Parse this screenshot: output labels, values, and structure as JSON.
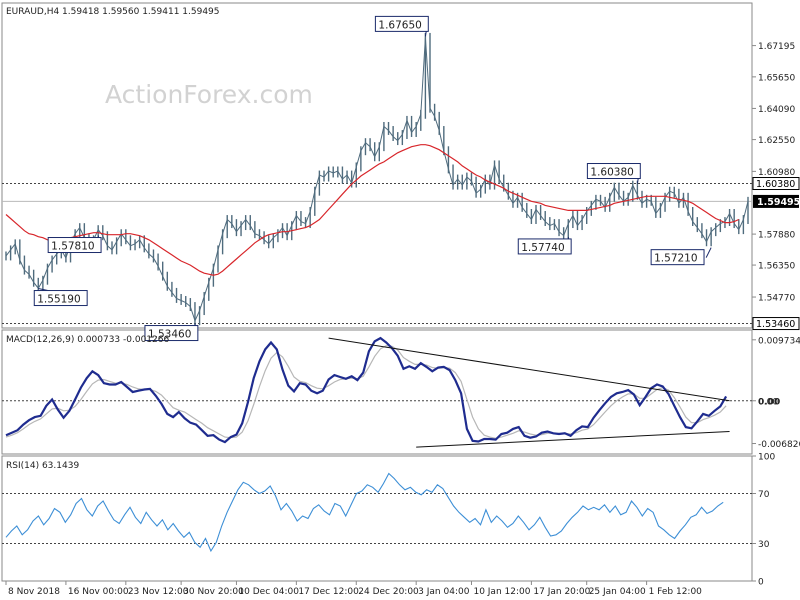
{
  "watermark": "ActionForex.com",
  "colors": {
    "price": "#4f6b7d",
    "ma": "#d8262b",
    "macd": "#1f2c8f",
    "signal": "#b7b7b7",
    "rsi": "#3d8fd6",
    "dotted": "#444444",
    "trend": "#111111",
    "text": "#222222",
    "axis": "#8a8a8a"
  },
  "chart_data": [
    {
      "type": "line",
      "title": "EURAUD,H4  1.59418 1.59560 1.59411 1.59495",
      "ylim": [
        1.5324,
        1.693
      ],
      "y_ticks": [
        "1.67195",
        "1.65650",
        "1.64090",
        "1.62550",
        "1.60980",
        "1.57880",
        "1.56350",
        "1.54770"
      ],
      "y_tick_values": [
        1.67195,
        1.6565,
        1.6409,
        1.6255,
        1.6098,
        1.5788,
        1.5635,
        1.5477
      ],
      "current_price": 1.59495,
      "current_price_label": "1.59495",
      "reference_lines": [
        {
          "value": 1.6038,
          "label": "1.60380"
        },
        {
          "value": 1.5346,
          "label": "1.53460"
        }
      ],
      "callouts": [
        {
          "label": "1.55190",
          "value": 1.5519,
          "bar": 7
        },
        {
          "label": "1.57810",
          "value": 1.5781,
          "bar": 20
        },
        {
          "label": "1.53460",
          "value": 1.5346,
          "bar": 41
        },
        {
          "label": "1.67650",
          "value": 1.6765,
          "bar": 91
        },
        {
          "label": "1.57740",
          "value": 1.5774,
          "bar": 122
        },
        {
          "label": "1.60380",
          "value": 1.6038,
          "bar": 137
        },
        {
          "label": "1.57210",
          "value": 1.5721,
          "bar": 153
        }
      ],
      "series": [
        {
          "name": "",
          "values": [
            1.568,
            1.571,
            1.574,
            1.566,
            1.561,
            1.559,
            1.555,
            1.552,
            1.556,
            1.562,
            1.566,
            1.569,
            1.571,
            1.567,
            1.574,
            1.579,
            1.582,
            1.577,
            1.574,
            1.576,
            1.581,
            1.578,
            1.573,
            1.571,
            1.575,
            1.579,
            1.576,
            1.573,
            1.574,
            1.576,
            1.572,
            1.569,
            1.567,
            1.563,
            1.558,
            1.553,
            1.55,
            1.547,
            1.546,
            1.545,
            1.543,
            1.536,
            1.541,
            1.548,
            1.555,
            1.562,
            1.571,
            1.579,
            1.586,
            1.584,
            1.58,
            1.583,
            1.586,
            1.583,
            1.579,
            1.578,
            1.576,
            1.574,
            1.577,
            1.579,
            1.582,
            1.578,
            1.583,
            1.588,
            1.585,
            1.584,
            1.59,
            1.6,
            1.608,
            1.607,
            1.61,
            1.609,
            1.61,
            1.606,
            1.608,
            1.604,
            1.612,
            1.62,
            1.624,
            1.622,
            1.617,
            1.622,
            1.632,
            1.63,
            1.627,
            1.625,
            1.628,
            1.635,
            1.629,
            1.632,
            1.638,
            1.676,
            1.641,
            1.637,
            1.63,
            1.62,
            1.611,
            1.603,
            1.606,
            1.603,
            1.607,
            1.605,
            1.599,
            1.601,
            1.606,
            1.603,
            1.613,
            1.606,
            1.602,
            1.598,
            1.594,
            1.597,
            1.592,
            1.589,
            1.586,
            1.591,
            1.588,
            1.585,
            1.583,
            1.584,
            1.58,
            1.578,
            1.584,
            1.588,
            1.583,
            1.586,
            1.59,
            1.593,
            1.596,
            1.595,
            1.592,
            1.597,
            1.602,
            1.598,
            1.595,
            1.597,
            1.603,
            1.598,
            1.594,
            1.596,
            1.595,
            1.589,
            1.592,
            1.597,
            1.6,
            1.599,
            1.594,
            1.597,
            1.59,
            1.585,
            1.582,
            1.579,
            1.575,
            1.58,
            1.582,
            1.584,
            1.585,
            1.589,
            1.584,
            1.581,
            1.586,
            1.595
          ]
        },
        {
          "name": "",
          "values": [
            1.5885,
            1.5865,
            1.5845,
            1.5825,
            1.5805,
            1.579,
            1.5785,
            1.5775,
            1.577,
            1.576,
            1.5755,
            1.5755,
            1.576,
            1.5765,
            1.577,
            1.5775,
            1.578,
            1.5785,
            1.579,
            1.5795,
            1.5795,
            1.579,
            1.5785,
            1.5785,
            1.5785,
            1.5785,
            1.579,
            1.579,
            1.5785,
            1.578,
            1.577,
            1.576,
            1.5745,
            1.573,
            1.5715,
            1.57,
            1.5685,
            1.567,
            1.5655,
            1.5645,
            1.5635,
            1.562,
            1.5605,
            1.5595,
            1.559,
            1.5585,
            1.559,
            1.5605,
            1.5625,
            1.5645,
            1.5665,
            1.5685,
            1.5705,
            1.5725,
            1.5745,
            1.576,
            1.5775,
            1.5785,
            1.579,
            1.5795,
            1.58,
            1.58,
            1.5805,
            1.581,
            1.5815,
            1.582,
            1.583,
            1.5845,
            1.586,
            1.5885,
            1.591,
            1.5935,
            1.596,
            1.5985,
            1.601,
            1.6035,
            1.6055,
            1.6075,
            1.609,
            1.6105,
            1.612,
            1.6135,
            1.6145,
            1.616,
            1.6175,
            1.619,
            1.62,
            1.621,
            1.622,
            1.6225,
            1.623,
            1.623,
            1.6225,
            1.6215,
            1.6205,
            1.619,
            1.6175,
            1.616,
            1.6145,
            1.6125,
            1.611,
            1.6095,
            1.608,
            1.607,
            1.6055,
            1.6045,
            1.6035,
            1.6025,
            1.6015,
            1.6,
            1.599,
            1.598,
            1.597,
            1.596,
            1.595,
            1.5945,
            1.594,
            1.593,
            1.5925,
            1.592,
            1.5915,
            1.591,
            1.5905,
            1.5905,
            1.5905,
            1.5905,
            1.5905,
            1.591,
            1.5915,
            1.592,
            1.5925,
            1.593,
            1.594,
            1.5945,
            1.595,
            1.5955,
            1.596,
            1.5965,
            1.597,
            1.5975,
            1.5975,
            1.5975,
            1.5975,
            1.5975,
            1.597,
            1.5965,
            1.596,
            1.5955,
            1.595,
            1.594,
            1.5925,
            1.591,
            1.5895,
            1.588,
            1.5865,
            1.5855,
            1.5845,
            1.5845,
            1.585,
            1.586
          ]
        }
      ],
      "x_tick_labels": [
        "8 Nov 2018",
        "16 Nov 00:00",
        "23 Nov 12:00",
        "30 Nov 20:00",
        "10 Dec 04:00",
        "17 Dec 12:00",
        "24 Dec 20:00",
        "3 Jan 04:00",
        "10 Jan 12:00",
        "17 Jan 20:00",
        "25 Jan 04:00",
        "1 Feb 12:00"
      ],
      "x_tick_bars": [
        0,
        13,
        26,
        38,
        50,
        63,
        76,
        89,
        101,
        114,
        126,
        139
      ]
    },
    {
      "type": "line",
      "title": "MACD(12,26,9) 0.000733 -0.001266",
      "ylim": [
        -0.0085,
        0.0113
      ],
      "y_ticks": [
        "0.009734",
        "0.00",
        "-0.006826"
      ],
      "y_tick_values": [
        0.009734,
        0.0,
        -0.006826
      ],
      "current_label": "0.00",
      "trendlines": [
        [
          {
            "bar": 70,
            "value": 0.01
          },
          {
            "bar": 157,
            "value": 0.0
          }
        ],
        [
          {
            "bar": 89,
            "value": -0.0074
          },
          {
            "bar": 157,
            "value": -0.0049
          }
        ]
      ],
      "series": [
        {
          "name": "",
          "values": [
            -0.0055,
            -0.0051,
            -0.0047,
            -0.0038,
            -0.0031,
            -0.0026,
            -0.0024,
            -0.0008,
            0.0002,
            -0.0014,
            -0.0027,
            -0.0016,
            0.0002,
            0.0021,
            0.0036,
            0.0047,
            0.0041,
            0.0028,
            0.0026,
            0.0026,
            0.003,
            0.0022,
            0.0014,
            0.0016,
            0.0018,
            0.0019,
            0.0008,
            -0.0005,
            -0.0021,
            -0.0026,
            -0.0018,
            -0.0028,
            -0.0035,
            -0.0038,
            -0.0047,
            -0.0056,
            -0.0055,
            -0.0062,
            -0.0066,
            -0.0058,
            -0.0054,
            -0.0036,
            -0.0002,
            0.0036,
            0.0063,
            0.0082,
            0.0093,
            0.0082,
            0.005,
            0.0024,
            0.0015,
            0.0028,
            0.0026,
            0.0016,
            0.0012,
            0.0016,
            0.0034,
            0.0041,
            0.0038,
            0.0035,
            0.0039,
            0.0033,
            0.0045,
            0.0079,
            0.0095,
            0.01,
            0.0093,
            0.0084,
            0.0072,
            0.0051,
            0.0055,
            0.0051,
            0.006,
            0.0054,
            0.0047,
            0.0053,
            0.0054,
            0.0049,
            0.0033,
            0.0012,
            -0.0045,
            -0.0064,
            -0.0065,
            -0.0061,
            -0.0061,
            -0.0062,
            -0.0053,
            -0.0051,
            -0.0045,
            -0.0042,
            -0.0056,
            -0.0059,
            -0.0057,
            -0.0051,
            -0.0049,
            -0.0052,
            -0.0053,
            -0.0052,
            -0.0056,
            -0.0047,
            -0.0041,
            -0.0042,
            -0.0027,
            -0.0015,
            -0.0004,
            0.0006,
            0.0012,
            0.0014,
            0.0017,
            0.001,
            -0.0007,
            0.0006,
            0.002,
            0.0026,
            0.0023,
            0.0011,
            -0.0008,
            -0.0026,
            -0.0042,
            -0.0044,
            -0.0033,
            -0.0021,
            -0.0024,
            -0.0016,
            -0.0009,
            0.0007
          ],
          "x_start_bar": 0,
          "x_step": 1.25
        },
        {
          "name": "",
          "values": [
            -0.0058,
            -0.0055,
            -0.0051,
            -0.0045,
            -0.0038,
            -0.0033,
            -0.0029,
            -0.0021,
            -0.0013,
            -0.0012,
            -0.0016,
            -0.0015,
            -0.0009,
            0.0002,
            0.0015,
            0.0027,
            0.0033,
            0.0034,
            0.0031,
            0.0028,
            0.0028,
            0.0026,
            0.0022,
            0.0019,
            0.0018,
            0.0018,
            0.0015,
            0.0009,
            -0.0001,
            -0.0011,
            -0.0015,
            -0.0018,
            -0.0024,
            -0.003,
            -0.0036,
            -0.0043,
            -0.0048,
            -0.0053,
            -0.0058,
            -0.0059,
            -0.0058,
            -0.005,
            -0.0032,
            -0.0006,
            0.0023,
            0.0048,
            0.0068,
            0.0077,
            0.007,
            0.0055,
            0.0038,
            0.0031,
            0.0029,
            0.0024,
            0.002,
            0.0019,
            0.0024,
            0.003,
            0.0034,
            0.0035,
            0.0036,
            0.0035,
            0.0039,
            0.0054,
            0.0071,
            0.0083,
            0.0088,
            0.0087,
            0.0081,
            0.0069,
            0.0063,
            0.0058,
            0.0058,
            0.0057,
            0.0053,
            0.0052,
            0.0053,
            0.0052,
            0.0045,
            0.0031,
            0.0002,
            -0.0026,
            -0.0045,
            -0.0055,
            -0.0058,
            -0.006,
            -0.0058,
            -0.0055,
            -0.0052,
            -0.0048,
            -0.005,
            -0.0053,
            -0.0055,
            -0.0054,
            -0.0052,
            -0.0052,
            -0.0052,
            -0.0052,
            -0.0053,
            -0.0051,
            -0.0047,
            -0.0045,
            -0.0038,
            -0.0028,
            -0.0018,
            -0.0008,
            0.0,
            0.0006,
            0.0011,
            0.0011,
            0.0004,
            0.0004,
            0.0011,
            0.0018,
            0.0021,
            0.0017,
            0.0005,
            -0.001,
            -0.0026,
            -0.0035,
            -0.0035,
            -0.003,
            -0.0027,
            -0.0023,
            -0.0018,
            -0.0008
          ],
          "x_start_bar": 0,
          "x_step": 1.25
        }
      ]
    },
    {
      "type": "line",
      "title": "RSI(14) 63.1439",
      "ylim": [
        0,
        100
      ],
      "y_ticks": [
        "100",
        "70",
        "30",
        "0"
      ],
      "y_tick_values": [
        100,
        70,
        30,
        0
      ],
      "reference_lines": [
        70,
        30
      ],
      "series": [
        {
          "name": "",
          "values": [
            35,
            40,
            44,
            37,
            41,
            48,
            52,
            45,
            50,
            58,
            55,
            47,
            53,
            62,
            66,
            57,
            52,
            60,
            64,
            56,
            49,
            46,
            53,
            59,
            51,
            46,
            55,
            49,
            44,
            49,
            41,
            46,
            40,
            35,
            39,
            31,
            27,
            34,
            24,
            31,
            44,
            55,
            64,
            73,
            79,
            77,
            73,
            70,
            72,
            76,
            68,
            57,
            62,
            56,
            48,
            52,
            50,
            58,
            61,
            56,
            53,
            62,
            60,
            52,
            61,
            70,
            72,
            77,
            75,
            71,
            78,
            86,
            82,
            77,
            73,
            75,
            71,
            69,
            73,
            71,
            77,
            74,
            67,
            60,
            55,
            51,
            47,
            50,
            45,
            57,
            47,
            52,
            48,
            43,
            46,
            52,
            47,
            41,
            45,
            51,
            43,
            36,
            37,
            40,
            46,
            51,
            55,
            60,
            57,
            59,
            57,
            61,
            55,
            60,
            53,
            55,
            64,
            59,
            52,
            58,
            55,
            44,
            41,
            37,
            34,
            40,
            45,
            51,
            53,
            59,
            54,
            56,
            60,
            63
          ],
          "x_start_bar": 0,
          "x_step": 1.17
        }
      ]
    }
  ]
}
